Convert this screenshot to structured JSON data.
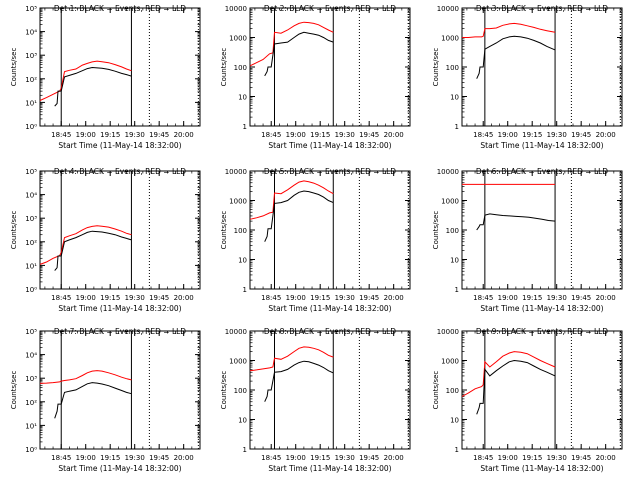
{
  "chart_data": [
    {
      "type": "line",
      "title": "Det 1: BLACK = Events, RED = LLD",
      "xlabel": "Start Time (11-May-14 18:32:00)",
      "ylabel": "Counts/sec",
      "yscale": "log",
      "ylim": [
        1,
        100000
      ],
      "ytick_labels": [
        "10⁰",
        "10¹",
        "10²",
        "10³",
        "10⁴",
        "10⁵"
      ],
      "xtick_labels": [
        "18:45",
        "19:00",
        "19:15",
        "19:30",
        "19:45",
        "20:00"
      ],
      "xlim": [
        "18:32",
        "20:10"
      ],
      "vlines": [
        "18:45",
        "19:28"
      ],
      "dotted_vlines": [
        "19:39",
        "20:09"
      ],
      "series": [
        {
          "color": "#000000",
          "x": [
            "18:41",
            "18:42:30",
            "18:43",
            "18:44:30",
            "18:45",
            "18:47",
            "18:50",
            "18:54",
            "18:58",
            "19:01",
            "19:04",
            "19:07",
            "19:10",
            "19:14",
            "19:18",
            "19:22",
            "19:25",
            "19:28"
          ],
          "y": [
            7,
            9,
            30,
            30,
            30,
            120,
            140,
            170,
            220,
            270,
            300,
            290,
            280,
            250,
            210,
            170,
            150,
            130
          ]
        },
        {
          "color": "#ff0000",
          "x": [
            "18:32",
            "18:36",
            "18:40",
            "18:44",
            "18:45",
            "18:47",
            "18:50",
            "18:54",
            "18:58",
            "19:01",
            "19:04",
            "19:07",
            "19:10",
            "19:14",
            "19:18",
            "19:22",
            "19:25",
            "19:28"
          ],
          "y": [
            12,
            16,
            22,
            30,
            40,
            200,
            230,
            260,
            380,
            450,
            520,
            560,
            530,
            480,
            400,
            320,
            260,
            220
          ]
        }
      ]
    },
    {
      "type": "line",
      "title": "Det 2: BLACK = Events, RED = LLD",
      "xlabel": "Start Time (11-May-14 18:32:00)",
      "ylabel": "Counts/sec",
      "yscale": "log",
      "ylim": [
        1,
        10000
      ],
      "ytick_labels": [
        "1",
        "10",
        "100",
        "1000",
        "10000"
      ],
      "xtick_labels": [
        "18:45",
        "19:00",
        "19:15",
        "19:30",
        "19:45",
        "20:00"
      ],
      "xlim": [
        "18:32",
        "20:10"
      ],
      "vlines": [
        "18:47",
        "19:23"
      ],
      "dotted_vlines": [
        "19:39",
        "20:09"
      ],
      "series": [
        {
          "color": "#000000",
          "x": [
            "18:41",
            "18:42:30",
            "18:43",
            "18:44:30",
            "18:45",
            "18:47",
            "18:51",
            "18:55",
            "18:59",
            "19:02",
            "19:05",
            "19:08",
            "19:11",
            "19:14",
            "19:17",
            "19:20",
            "19:23"
          ],
          "y": [
            50,
            70,
            100,
            100,
            100,
            600,
            650,
            700,
            1000,
            1300,
            1500,
            1400,
            1300,
            1200,
            1000,
            800,
            700
          ]
        },
        {
          "color": "#ff0000",
          "x": [
            "18:32",
            "18:36",
            "18:40",
            "18:44",
            "18:46",
            "18:47",
            "18:51",
            "18:55",
            "18:59",
            "19:02",
            "19:05",
            "19:08",
            "19:11",
            "19:14",
            "19:17",
            "19:20",
            "19:23"
          ],
          "y": [
            110,
            140,
            180,
            280,
            300,
            1500,
            1400,
            1800,
            2500,
            3000,
            3300,
            3200,
            3000,
            2700,
            2200,
            1800,
            1500
          ]
        }
      ]
    },
    {
      "type": "line",
      "title": "Det 3: BLACK = Events, RED = LLD",
      "xlabel": "Start Time (11-May-14 18:32:00)",
      "ylabel": "Counts/sec",
      "yscale": "log",
      "ylim": [
        1,
        10000
      ],
      "ytick_labels": [
        "1",
        "10",
        "100",
        "1000",
        "10000"
      ],
      "xtick_labels": [
        "18:45",
        "19:00",
        "19:15",
        "19:30",
        "19:45",
        "20:00"
      ],
      "xlim": [
        "18:32",
        "20:10"
      ],
      "vlines": [
        "18:46",
        "19:29"
      ],
      "dotted_vlines": [
        "19:39",
        "20:09"
      ],
      "series": [
        {
          "color": "#000000",
          "x": [
            "18:41",
            "18:42:30",
            "18:43",
            "18:44:30",
            "18:45",
            "18:46",
            "18:49",
            "18:53",
            "18:57",
            "19:01",
            "19:04",
            "19:08",
            "19:12",
            "19:16",
            "19:20",
            "19:24",
            "19:29"
          ],
          "y": [
            40,
            60,
            100,
            100,
            100,
            400,
            500,
            650,
            900,
            1050,
            1100,
            1050,
            950,
            800,
            650,
            500,
            380
          ]
        },
        {
          "color": "#ff0000",
          "x": [
            "18:32",
            "18:36",
            "18:40",
            "18:44",
            "18:45",
            "18:46",
            "18:49",
            "18:53",
            "18:57",
            "19:01",
            "19:04",
            "19:08",
            "19:12",
            "19:16",
            "19:20",
            "19:24",
            "19:29"
          ],
          "y": [
            1000,
            1000,
            1050,
            1050,
            1100,
            2000,
            2000,
            2100,
            2600,
            2900,
            3000,
            2800,
            2500,
            2200,
            1900,
            1700,
            1500
          ]
        }
      ]
    },
    {
      "type": "line",
      "title": "Det 4: BLACK = Events, RED = LLD",
      "xlabel": "Start Time (11-May-14 18:32:00)",
      "ylabel": "Counts/sec",
      "yscale": "log",
      "ylim": [
        1,
        100000
      ],
      "ytick_labels": [
        "10⁰",
        "10¹",
        "10²",
        "10³",
        "10⁴",
        "10⁵"
      ],
      "xtick_labels": [
        "18:45",
        "19:00",
        "19:15",
        "19:30",
        "19:45",
        "20:00"
      ],
      "xlim": [
        "18:32",
        "20:10"
      ],
      "vlines": [
        "18:45",
        "19:28"
      ],
      "dotted_vlines": [
        "19:39",
        "20:09"
      ],
      "series": [
        {
          "color": "#000000",
          "x": [
            "18:41",
            "18:42:30",
            "18:43",
            "18:44:30",
            "18:45",
            "18:47",
            "18:50",
            "18:54",
            "18:58",
            "19:01",
            "19:04",
            "19:07",
            "19:10",
            "19:14",
            "19:18",
            "19:22",
            "19:25",
            "19:28"
          ],
          "y": [
            6,
            8,
            25,
            25,
            25,
            100,
            120,
            150,
            200,
            250,
            280,
            270,
            260,
            230,
            200,
            160,
            140,
            120
          ]
        },
        {
          "color": "#ff0000",
          "x": [
            "18:32",
            "18:36",
            "18:40",
            "18:44",
            "18:45",
            "18:47",
            "18:50",
            "18:54",
            "18:58",
            "19:01",
            "19:04",
            "19:07",
            "19:10",
            "19:14",
            "19:18",
            "19:22",
            "19:25",
            "19:28"
          ],
          "y": [
            11,
            14,
            20,
            26,
            35,
            150,
            180,
            220,
            320,
            400,
            450,
            480,
            460,
            420,
            350,
            280,
            230,
            200
          ]
        }
      ]
    },
    {
      "type": "line",
      "title": "Det 5: BLACK = Events, RED = LLD",
      "xlabel": "Start Time (11-May-14 18:32:00)",
      "ylabel": "Counts/sec",
      "yscale": "log",
      "ylim": [
        1,
        10000
      ],
      "ytick_labels": [
        "1",
        "10",
        "100",
        "1000",
        "10000"
      ],
      "xtick_labels": [
        "18:45",
        "19:00",
        "19:15",
        "19:30",
        "19:45",
        "20:00"
      ],
      "xlim": [
        "18:32",
        "20:10"
      ],
      "vlines": [
        "18:47",
        "19:23"
      ],
      "dotted_vlines": [
        "19:39",
        "20:09"
      ],
      "series": [
        {
          "color": "#000000",
          "x": [
            "18:41",
            "18:42:30",
            "18:43",
            "18:44:30",
            "18:45",
            "18:47",
            "18:51",
            "18:55",
            "18:59",
            "19:02",
            "19:05",
            "19:08",
            "19:11",
            "19:14",
            "19:17",
            "19:20",
            "19:23"
          ],
          "y": [
            40,
            60,
            110,
            110,
            110,
            800,
            850,
            1000,
            1500,
            1900,
            2100,
            2000,
            1800,
            1600,
            1300,
            1000,
            850
          ]
        },
        {
          "color": "#ff0000",
          "x": [
            "18:32",
            "18:36",
            "18:40",
            "18:44",
            "18:46",
            "18:47",
            "18:51",
            "18:55",
            "18:59",
            "19:02",
            "19:05",
            "19:08",
            "19:11",
            "19:14",
            "19:17",
            "19:20",
            "19:23"
          ],
          "y": [
            230,
            260,
            300,
            380,
            400,
            1800,
            1700,
            2300,
            3300,
            4200,
            4600,
            4300,
            3900,
            3300,
            2700,
            2100,
            1700
          ]
        }
      ]
    },
    {
      "type": "line",
      "title": "Det 6: BLACK = Events, RED = LLD",
      "xlabel": "Start Time (11-May-14 18:32:00)",
      "ylabel": "Counts/sec",
      "yscale": "log",
      "ylim": [
        1,
        10000
      ],
      "ytick_labels": [
        "1",
        "10",
        "100",
        "1000",
        "10000"
      ],
      "xtick_labels": [
        "18:45",
        "19:00",
        "19:15",
        "19:30",
        "19:45",
        "20:00"
      ],
      "xlim": [
        "18:32",
        "20:10"
      ],
      "vlines": [
        "18:46",
        "19:29"
      ],
      "dotted_vlines": [
        "19:39",
        "20:09"
      ],
      "series": [
        {
          "color": "#000000",
          "x": [
            "18:41",
            "18:42:30",
            "18:43",
            "18:44:30",
            "18:45",
            "18:46",
            "18:49",
            "18:53",
            "18:57",
            "19:01",
            "19:05",
            "19:09",
            "19:13",
            "19:17",
            "19:21",
            "19:25",
            "19:29"
          ],
          "y": [
            100,
            130,
            150,
            150,
            150,
            320,
            350,
            330,
            310,
            300,
            290,
            280,
            270,
            250,
            230,
            210,
            200
          ]
        },
        {
          "color": "#ff0000",
          "x": [
            "18:32",
            "18:45",
            "19:00",
            "19:15",
            "19:29"
          ],
          "y": [
            3500,
            3500,
            3500,
            3500,
            3500
          ]
        }
      ]
    },
    {
      "type": "line",
      "title": "Det 7: BLACK = Events, RED = LLD",
      "xlabel": "Start Time (11-May-14 18:32:00)",
      "ylabel": "Counts/sec",
      "yscale": "log",
      "ylim": [
        1,
        100000
      ],
      "ytick_labels": [
        "10⁰",
        "10¹",
        "10²",
        "10³",
        "10⁴",
        "10⁵"
      ],
      "xtick_labels": [
        "18:45",
        "19:00",
        "19:15",
        "19:30",
        "19:45",
        "20:00"
      ],
      "xlim": [
        "18:32",
        "20:10"
      ],
      "vlines": [
        "18:45",
        "19:28"
      ],
      "dotted_vlines": [
        "19:39",
        "20:09"
      ],
      "series": [
        {
          "color": "#000000",
          "x": [
            "18:41",
            "18:42:30",
            "18:43",
            "18:44:30",
            "18:45",
            "18:47",
            "18:50",
            "18:54",
            "18:58",
            "19:01",
            "19:04",
            "19:07",
            "19:10",
            "19:14",
            "19:18",
            "19:22",
            "19:25",
            "19:28"
          ],
          "y": [
            20,
            40,
            80,
            80,
            80,
            250,
            280,
            320,
            450,
            580,
            650,
            620,
            570,
            480,
            380,
            300,
            250,
            220
          ]
        },
        {
          "color": "#ff0000",
          "x": [
            "18:32",
            "18:36",
            "18:40",
            "18:44",
            "18:45",
            "18:47",
            "18:50",
            "18:54",
            "18:58",
            "19:01",
            "19:04",
            "19:07",
            "19:10",
            "19:14",
            "19:18",
            "19:22",
            "19:25",
            "19:28"
          ],
          "y": [
            600,
            620,
            650,
            700,
            750,
            800,
            850,
            950,
            1300,
            1700,
            2000,
            2100,
            2000,
            1700,
            1400,
            1100,
            950,
            850
          ]
        }
      ]
    },
    {
      "type": "line",
      "title": "Det 8: BLACK = Events, RED = LLD",
      "xlabel": "Start Time (11-May-14 18:32:00)",
      "ylabel": "Counts/sec",
      "yscale": "log",
      "ylim": [
        1,
        10000
      ],
      "ytick_labels": [
        "1",
        "10",
        "100",
        "1000",
        "10000"
      ],
      "xtick_labels": [
        "18:45",
        "19:00",
        "19:15",
        "19:30",
        "19:45",
        "20:00"
      ],
      "xlim": [
        "18:32",
        "20:10"
      ],
      "vlines": [
        "18:47",
        "19:23"
      ],
      "dotted_vlines": [
        "19:39",
        "20:09"
      ],
      "series": [
        {
          "color": "#000000",
          "x": [
            "18:41",
            "18:42:30",
            "18:43",
            "18:44:30",
            "18:45",
            "18:47",
            "18:51",
            "18:55",
            "18:59",
            "19:02",
            "19:05",
            "19:08",
            "19:11",
            "19:14",
            "19:17",
            "19:20",
            "19:23"
          ],
          "y": [
            40,
            60,
            100,
            100,
            100,
            400,
            420,
            500,
            700,
            850,
            950,
            900,
            800,
            700,
            580,
            450,
            380
          ]
        },
        {
          "color": "#ff0000",
          "x": [
            "18:32",
            "18:36",
            "18:40",
            "18:44",
            "18:46",
            "18:47",
            "18:51",
            "18:55",
            "18:59",
            "19:02",
            "19:05",
            "19:08",
            "19:11",
            "19:14",
            "19:17",
            "19:20",
            "19:23"
          ],
          "y": [
            450,
            480,
            520,
            560,
            600,
            1200,
            1100,
            1400,
            2000,
            2600,
            2900,
            2800,
            2600,
            2300,
            1900,
            1500,
            1300
          ]
        }
      ]
    },
    {
      "type": "line",
      "title": "Det 9: BLACK = Events, RED = LLD",
      "xlabel": "Start Time (11-May-14 18:32:00)",
      "ylabel": "Counts/sec",
      "yscale": "log",
      "ylim": [
        1,
        10000
      ],
      "ytick_labels": [
        "1",
        "10",
        "100",
        "1000",
        "10000"
      ],
      "xtick_labels": [
        "18:45",
        "19:00",
        "19:15",
        "19:30",
        "19:45",
        "20:00"
      ],
      "xlim": [
        "18:32",
        "20:10"
      ],
      "vlines": [
        "18:46",
        "19:29"
      ],
      "dotted_vlines": [
        "19:39",
        "20:09"
      ],
      "series": [
        {
          "color": "#000000",
          "x": [
            "18:41",
            "18:42:30",
            "18:43",
            "18:44:30",
            "18:45",
            "18:46",
            "18:49",
            "18:53",
            "18:57",
            "19:01",
            "19:04",
            "19:08",
            "19:12",
            "19:16",
            "19:20",
            "19:24",
            "19:29"
          ],
          "y": [
            15,
            25,
            35,
            35,
            35,
            500,
            300,
            450,
            650,
            900,
            1000,
            950,
            850,
            650,
            500,
            400,
            300
          ]
        },
        {
          "color": "#ff0000",
          "x": [
            "18:32",
            "18:36",
            "18:40",
            "18:44",
            "18:45",
            "18:46",
            "18:49",
            "18:53",
            "18:57",
            "19:01",
            "19:04",
            "19:08",
            "19:12",
            "19:16",
            "19:20",
            "19:24",
            "19:29"
          ],
          "y": [
            60,
            80,
            110,
            130,
            150,
            900,
            600,
            900,
            1400,
            1800,
            2000,
            1900,
            1700,
            1300,
            1000,
            800,
            600
          ]
        }
      ]
    }
  ]
}
